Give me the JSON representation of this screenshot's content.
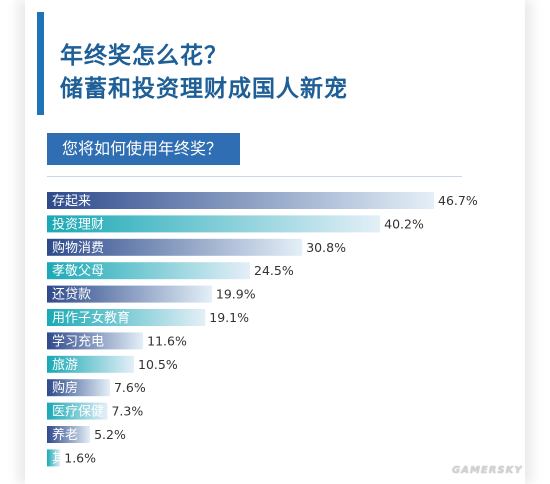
{
  "title": {
    "line1": "年终奖怎么花？",
    "line2": "储蓄和投资理财成国人新宠"
  },
  "question": "您将如何使用年终奖？",
  "colors": {
    "accent": "#1f73b7",
    "title": "#1f5f97",
    "question_bg": "#2f6eb2",
    "bar_dark": "#2e4a8c",
    "bar_teal": "#19a9b5",
    "bar_fade": "#e4eff7"
  },
  "chart_data": {
    "type": "bar",
    "orientation": "horizontal",
    "categories": [
      "存起来",
      "投资理财",
      "购物消费",
      "孝敬父母",
      "还贷款",
      "用作子女教育",
      "学习充电",
      "旅游",
      "购房",
      "医疗保健",
      "养老",
      "其他"
    ],
    "values": [
      46.7,
      40.2,
      30.8,
      24.5,
      19.9,
      19.1,
      11.6,
      10.5,
      7.6,
      7.3,
      5.2,
      1.6
    ],
    "value_labels": [
      "46.7%",
      "40.2%",
      "30.8%",
      "24.5%",
      "19.9%",
      "19.1%",
      "11.6%",
      "10.5%",
      "7.6%",
      "7.3%",
      "5.2%",
      "1.6%"
    ],
    "bar_color_pattern": [
      "dark",
      "teal"
    ],
    "unit": "%",
    "grid": false,
    "legend": "none"
  },
  "watermark": "GAMERSKY"
}
